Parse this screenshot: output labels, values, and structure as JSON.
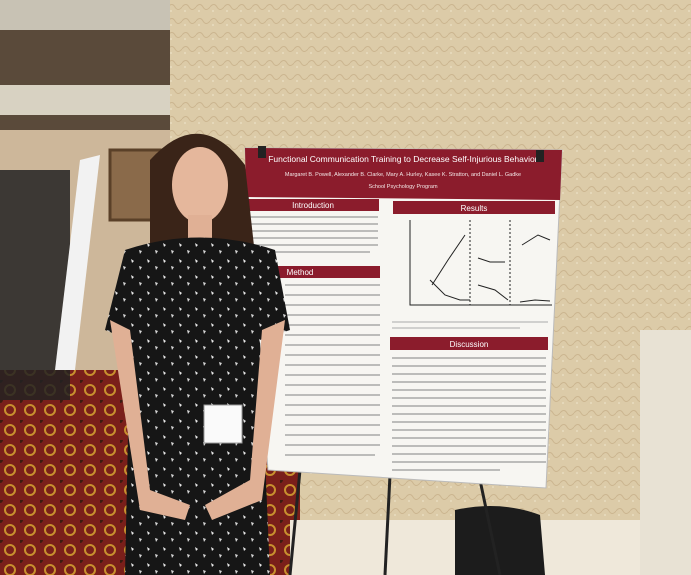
{
  "poster": {
    "title": "Functional Communication Training to Decrease Self-Injurious Behaviors",
    "authors": "Margaret B. Powell, Alexander B. Clarke, Mary A. Hurley, Kasee K. Stratton, and Daniel L. Gadke",
    "program": "School Psychology Program",
    "sections": [
      "Introduction",
      "Method",
      "Results",
      "Discussion"
    ]
  }
}
